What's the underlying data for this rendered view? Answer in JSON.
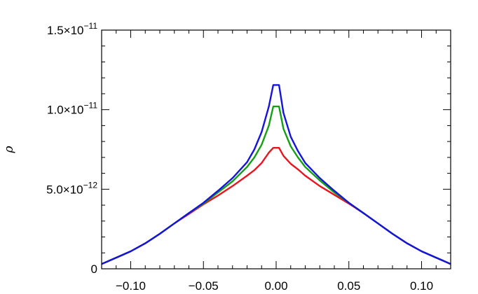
{
  "chart_data": {
    "type": "line",
    "title": "",
    "xlabel": "",
    "ylabel": "ρ",
    "xlim": [
      -0.12,
      0.12
    ],
    "ylim": [
      0,
      1.5e-11
    ],
    "grid": false,
    "x_ticks": [
      {
        "value": -0.1,
        "label": "−0.10"
      },
      {
        "value": -0.05,
        "label": "−0.05"
      },
      {
        "value": 0.0,
        "label": "0.00"
      },
      {
        "value": 0.05,
        "label": "0.05"
      },
      {
        "value": 0.1,
        "label": "0.10"
      }
    ],
    "y_ticks": [
      {
        "value": 0,
        "mantissa": "0",
        "exponent": ""
      },
      {
        "value": 5e-12,
        "mantissa": "5.0×10",
        "exponent": "−12"
      },
      {
        "value": 1e-11,
        "mantissa": "1.0×10",
        "exponent": "−11"
      },
      {
        "value": 1.5e-11,
        "mantissa": "1.5×10",
        "exponent": "−11"
      }
    ],
    "series": [
      {
        "color": "#e8141e",
        "x": [
          -0.12,
          -0.11,
          -0.1,
          -0.09,
          -0.08,
          -0.07,
          -0.06,
          -0.05,
          -0.04,
          -0.03,
          -0.02,
          -0.015,
          -0.01,
          -0.005,
          -0.002,
          0.002,
          0.005,
          0.01,
          0.015,
          0.02,
          0.03,
          0.04,
          0.05,
          0.06,
          0.07,
          0.08,
          0.09,
          0.1,
          0.11,
          0.12
        ],
        "y": [
          3e-13,
          7e-13,
          1.1e-12,
          1.6e-12,
          2.2e-12,
          2.85e-12,
          3.45e-12,
          4.05e-12,
          4.6e-12,
          5.2e-12,
          5.85e-12,
          6.2e-12,
          6.65e-12,
          7.3e-12,
          7.6e-12,
          7.6e-12,
          7.1e-12,
          6.6e-12,
          6.25e-12,
          5.85e-12,
          5.2e-12,
          4.65e-12,
          4.1e-12,
          3.5e-12,
          2.85e-12,
          2.2e-12,
          1.6e-12,
          1.1e-12,
          7e-13,
          3e-13
        ]
      },
      {
        "color": "#14a014",
        "x": [
          -0.12,
          -0.11,
          -0.1,
          -0.09,
          -0.08,
          -0.07,
          -0.06,
          -0.05,
          -0.04,
          -0.03,
          -0.02,
          -0.015,
          -0.01,
          -0.005,
          -0.002,
          0.002,
          0.005,
          0.01,
          0.015,
          0.02,
          0.03,
          0.04,
          0.05,
          0.06,
          0.07,
          0.08,
          0.09,
          0.1,
          0.11,
          0.12
        ],
        "y": [
          3e-13,
          7e-13,
          1.1e-12,
          1.6e-12,
          2.2e-12,
          2.85e-12,
          3.5e-12,
          4.1e-12,
          4.8e-12,
          5.5e-12,
          6.4e-12,
          7e-12,
          7.8e-12,
          9e-12,
          1.02e-11,
          1.02e-11,
          8.8e-12,
          7.7e-12,
          7e-12,
          6.4e-12,
          5.55e-12,
          4.8e-12,
          4.15e-12,
          3.5e-12,
          2.85e-12,
          2.2e-12,
          1.6e-12,
          1.1e-12,
          7e-13,
          3e-13
        ]
      },
      {
        "color": "#1414dc",
        "x": [
          -0.12,
          -0.11,
          -0.1,
          -0.09,
          -0.08,
          -0.07,
          -0.06,
          -0.05,
          -0.04,
          -0.03,
          -0.02,
          -0.015,
          -0.01,
          -0.005,
          -0.002,
          0.002,
          0.005,
          0.01,
          0.015,
          0.02,
          0.03,
          0.04,
          0.05,
          0.06,
          0.07,
          0.08,
          0.09,
          0.1,
          0.11,
          0.12
        ],
        "y": [
          3e-13,
          7e-13,
          1.1e-12,
          1.6e-12,
          2.2e-12,
          2.85e-12,
          3.5e-12,
          4.15e-12,
          4.9e-12,
          5.7e-12,
          6.7e-12,
          7.5e-12,
          8.6e-12,
          1.02e-11,
          1.155e-11,
          1.155e-11,
          9.8e-12,
          8.3e-12,
          7.4e-12,
          6.65e-12,
          5.7e-12,
          4.9e-12,
          4.15e-12,
          3.5e-12,
          2.85e-12,
          2.2e-12,
          1.6e-12,
          1.1e-12,
          7e-13,
          3e-13
        ]
      }
    ]
  }
}
